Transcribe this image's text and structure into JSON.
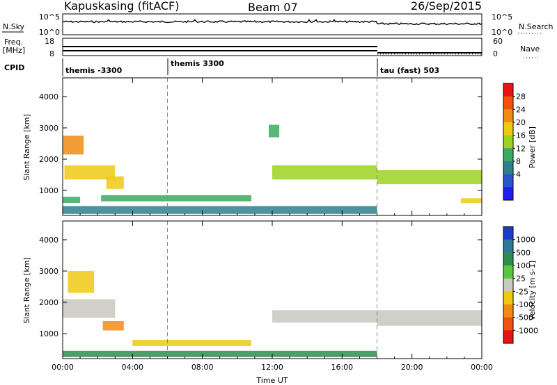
{
  "header": {
    "station": "Kapuskasing (fitACF)",
    "beam": "Beam 07",
    "date": "26/Sep/2015"
  },
  "noise_panel": {
    "left_label": "N.Sky",
    "right_label": "N.Search",
    "left_ticks": [
      "10^5",
      "10^0"
    ],
    "right_ticks": [
      "10^5",
      "10^0"
    ]
  },
  "freq_panel": {
    "left_label_1": "Freq.",
    "left_label_2": "[MHz]",
    "right_label": "Nave",
    "left_ticks": [
      "18",
      "8"
    ],
    "right_ticks": [
      "60",
      "0"
    ]
  },
  "cpid_panel": {
    "label": "CPID",
    "segments": [
      {
        "name": "themis -3300",
        "start_hour": 0
      },
      {
        "name": "themis 3300",
        "start_hour": 6
      },
      {
        "name": "tau (fast) 503",
        "start_hour": 18
      }
    ]
  },
  "chart_data": [
    {
      "type": "heatmap",
      "parameter": "Power",
      "ylabel": "Slant Range [km]",
      "ylim": [
        200,
        4600
      ],
      "yticks": [
        "1000",
        "2000",
        "3000",
        "4000"
      ],
      "xlim": [
        0,
        24
      ],
      "colorbar": {
        "label": "Power [dB]",
        "ticks": [
          "4",
          "8",
          "12",
          "16",
          "20",
          "24",
          "28"
        ],
        "colors": [
          "#1e1ef0",
          "#2a55c8",
          "#2f7f8c",
          "#3da860",
          "#9cd21e",
          "#f0c814",
          "#f08c14",
          "#f05010",
          "#e61414"
        ]
      },
      "regions": [
        {
          "t0": 0.0,
          "t1": 1.2,
          "r0": 2150,
          "r1": 2750,
          "level": 24
        },
        {
          "t0": 0.1,
          "t1": 3.0,
          "r0": 1350,
          "r1": 1800,
          "level": 20
        },
        {
          "t0": 2.5,
          "t1": 3.5,
          "r0": 1050,
          "r1": 1450,
          "level": 18
        },
        {
          "t0": 0.0,
          "t1": 1.0,
          "r0": 600,
          "r1": 800,
          "level": 10
        },
        {
          "t0": 2.2,
          "t1": 10.8,
          "r0": 650,
          "r1": 850,
          "level": 12
        },
        {
          "t0": 0.0,
          "t1": 18.0,
          "r0": 250,
          "r1": 500,
          "level": 6
        },
        {
          "t0": 11.8,
          "t1": 12.4,
          "r0": 2700,
          "r1": 3100,
          "level": 10
        },
        {
          "t0": 12.0,
          "t1": 18.0,
          "r0": 1350,
          "r1": 1800,
          "level": 14
        },
        {
          "t0": 18.0,
          "t1": 24.0,
          "r0": 1200,
          "r1": 1650,
          "level": 16
        },
        {
          "t0": 22.8,
          "t1": 24.0,
          "r0": 600,
          "r1": 750,
          "level": 20
        }
      ]
    },
    {
      "type": "heatmap",
      "parameter": "Velocity",
      "ylabel": "Slant Range [km]",
      "xlabel": "Time UT",
      "ylim": [
        200,
        4600
      ],
      "yticks": [
        "1000",
        "2000",
        "3000",
        "4000"
      ],
      "xlim": [
        0,
        24
      ],
      "xticks": [
        "00:00",
        "04:00",
        "08:00",
        "12:00",
        "16:00",
        "20:00",
        "00:00"
      ],
      "colorbar": {
        "label": "Velocity [m s-1]",
        "ticks": [
          "1000",
          "500",
          "100",
          "25",
          "-25",
          "-100",
          "-500",
          "-1000"
        ],
        "colors": [
          "#1e3cc8",
          "#2f7896",
          "#2f8c50",
          "#5ac83c",
          "#c8c8c0",
          "#f0c814",
          "#f08c14",
          "#f05010",
          "#e61414"
        ]
      },
      "regions": [
        {
          "t0": 0.3,
          "t1": 1.8,
          "r0": 2300,
          "r1": 3000,
          "level": -100
        },
        {
          "t0": 0.0,
          "t1": 3.0,
          "r0": 1500,
          "r1": 2100,
          "level": 0
        },
        {
          "t0": 2.3,
          "t1": 3.5,
          "r0": 1100,
          "r1": 1400,
          "level": -300
        },
        {
          "t0": 4.0,
          "t1": 10.8,
          "r0": 600,
          "r1": 800,
          "level": -100
        },
        {
          "t0": 0.0,
          "t1": 18.0,
          "r0": 250,
          "r1": 450,
          "level": 100
        },
        {
          "t0": 12.0,
          "t1": 18.0,
          "r0": 1350,
          "r1": 1750,
          "level": 0
        },
        {
          "t0": 18.0,
          "t1": 24.0,
          "r0": 1250,
          "r1": 1750,
          "level": 0
        }
      ]
    }
  ]
}
